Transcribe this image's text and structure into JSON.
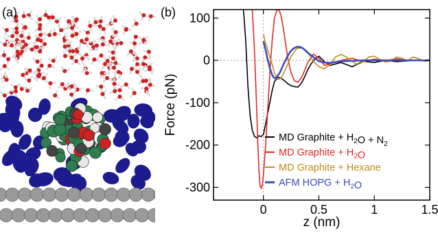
{
  "panel_a": {
    "label": "(a)",
    "colors": {
      "water_oxygen": "#cc2222",
      "water_hydrogen": "#dddddd",
      "nitrogen": "#1c1c8e",
      "cluster_carbon": "#2e7d4f",
      "graphite": "#9a9a9a"
    }
  },
  "panel_b": {
    "label": "(b)"
  },
  "chart_data": {
    "type": "line",
    "xlabel": "z (nm)",
    "ylabel": "Force (pN)",
    "xlim": [
      -0.45,
      1.5
    ],
    "ylim": [
      -330,
      120
    ],
    "x_ticks": [
      {
        "value": 0,
        "label": "0"
      },
      {
        "value": 0.5,
        "label": "0.5"
      },
      {
        "value": 1.0,
        "label": "1"
      },
      {
        "value": 1.5,
        "label": "1.5"
      }
    ],
    "y_ticks": [
      {
        "value": 100,
        "label": "100"
      },
      {
        "value": 0,
        "label": "0"
      },
      {
        "value": -100,
        "label": "-100"
      },
      {
        "value": -200,
        "label": "-200"
      },
      {
        "value": -300,
        "label": "-300"
      }
    ],
    "reference_lines": [
      {
        "axis": "y",
        "value": 0,
        "style": "dotted"
      },
      {
        "axis": "x",
        "value": 0,
        "style": "dotted"
      }
    ],
    "legend": {
      "placement": "lower-right",
      "entries": [
        {
          "series": 0,
          "parts": [
            {
              "t": "MD Graphite + H"
            },
            {
              "t": "2",
              "sub": true
            },
            {
              "t": "O + N"
            },
            {
              "t": "2",
              "sub": true
            }
          ]
        },
        {
          "series": 1,
          "parts": [
            {
              "t": "MD Graphite + H"
            },
            {
              "t": "2",
              "sub": true
            },
            {
              "t": "O"
            }
          ]
        },
        {
          "series": 2,
          "parts": [
            {
              "t": "MD Graphite + Hexane"
            }
          ]
        },
        {
          "series": 3,
          "parts": [
            {
              "t": "AFM HOPG + H"
            },
            {
              "t": "2",
              "sub": true
            },
            {
              "t": "O"
            }
          ]
        }
      ]
    },
    "series": [
      {
        "name": "MD Graphite + H2O + N2",
        "color": "#000000",
        "x": [
          -0.18,
          -0.16,
          -0.14,
          -0.12,
          -0.1,
          -0.08,
          -0.06,
          -0.04,
          -0.02,
          0.0,
          0.02,
          0.05,
          0.08,
          0.1,
          0.13,
          0.16,
          0.19,
          0.22,
          0.25,
          0.28,
          0.31,
          0.34,
          0.37,
          0.4,
          0.43,
          0.46,
          0.5,
          0.55,
          0.6,
          0.7,
          0.8,
          0.9,
          1.0,
          1.1,
          1.2,
          1.3,
          1.35
        ],
        "y": [
          120,
          50,
          -60,
          -130,
          -165,
          -180,
          -183,
          -178,
          -180,
          -175,
          -150,
          -110,
          -70,
          -50,
          -40,
          -42,
          -48,
          -55,
          -60,
          -62,
          -63,
          -55,
          -40,
          -22,
          -8,
          2,
          10,
          -3,
          -12,
          -5,
          -15,
          -2,
          -5,
          0,
          -3,
          -1,
          0
        ]
      },
      {
        "name": "MD Graphite + H2O",
        "color": "#e32626",
        "x": [
          -0.1,
          -0.08,
          -0.06,
          -0.05,
          -0.04,
          -0.03,
          -0.02,
          -0.01,
          0.0,
          0.02,
          0.04,
          0.06,
          0.08,
          0.1,
          0.12,
          0.14,
          0.16,
          0.18,
          0.2,
          0.22,
          0.25,
          0.28,
          0.31,
          0.35,
          0.4,
          0.45,
          0.5,
          0.55,
          0.6,
          0.7,
          0.8,
          0.9,
          1.0,
          1.1,
          1.2,
          1.3
        ],
        "y": [
          120,
          20,
          -120,
          -200,
          -260,
          -295,
          -302,
          -295,
          -270,
          -200,
          -110,
          -20,
          50,
          100,
          118,
          120,
          105,
          75,
          40,
          5,
          -30,
          -48,
          -52,
          -38,
          -5,
          15,
          5,
          -12,
          -8,
          0,
          5,
          -3,
          3,
          -1,
          4,
          0
        ]
      },
      {
        "name": "MD Graphite + Hexane",
        "color": "#c48a1a",
        "x": [
          0.0,
          0.02,
          0.05,
          0.08,
          0.1,
          0.13,
          0.16,
          0.2,
          0.25,
          0.3,
          0.35,
          0.4,
          0.45,
          0.5,
          0.55,
          0.6,
          0.65,
          0.7,
          0.75,
          0.8,
          0.85,
          0.9,
          0.95,
          1.0,
          1.05,
          1.1,
          1.15,
          1.2,
          1.25,
          1.3,
          1.35,
          1.4,
          1.45,
          1.5
        ],
        "y": [
          62,
          40,
          15,
          -10,
          -30,
          -45,
          -42,
          -20,
          10,
          28,
          30,
          20,
          -2,
          -15,
          -20,
          -10,
          8,
          14,
          8,
          -2,
          -10,
          -3,
          8,
          10,
          2,
          -4,
          -2,
          8,
          5,
          -1,
          8,
          4,
          -2,
          0
        ]
      },
      {
        "name": "AFM HOPG + H2O",
        "color": "#3b4db8",
        "x": [
          0.0,
          0.02,
          0.04,
          0.06,
          0.08,
          0.1,
          0.12,
          0.15,
          0.18,
          0.21,
          0.24,
          0.27,
          0.3,
          0.33,
          0.36,
          0.4,
          0.45,
          0.5,
          0.55,
          0.6,
          0.65,
          0.7,
          0.8,
          0.9,
          1.0,
          1.1,
          1.2,
          1.3,
          1.4,
          1.5
        ],
        "y": [
          45,
          25,
          0,
          -20,
          -35,
          -42,
          -40,
          -28,
          -10,
          6,
          20,
          28,
          32,
          32,
          28,
          18,
          8,
          -2,
          -5,
          -6,
          -4,
          -2,
          -1,
          0,
          0,
          0,
          0,
          0,
          0,
          0
        ]
      }
    ]
  }
}
